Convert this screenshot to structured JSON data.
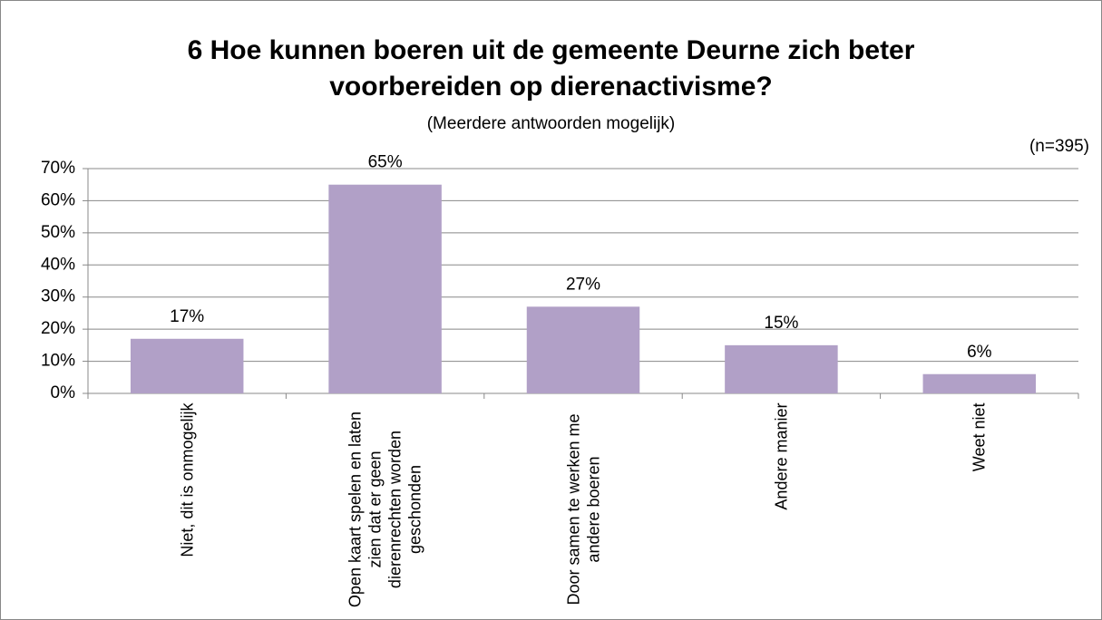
{
  "chart_data": {
    "type": "bar",
    "title": "6 Hoe kunnen boeren uit de gemeente Deurne zich beter voorbereiden op dierenactivisme?",
    "subtitle": "(Meerdere antwoorden mogelijk)",
    "annotation": "(n=395)",
    "categories": [
      "Niet, dit is onmogelijk",
      "Open kaart spelen en laten zien dat er geen dierenrechten worden geschonden",
      "Door samen te werken me andere boeren",
      "Andere manier",
      "Weet niet"
    ],
    "values": [
      17,
      65,
      27,
      15,
      6
    ],
    "value_labels": [
      "17%",
      "65%",
      "27%",
      "15%",
      "6%"
    ],
    "color": "#b1a0c7",
    "ylim": [
      0,
      70
    ],
    "yticks": [
      {
        "value": 0,
        "label": "0%"
      },
      {
        "value": 10,
        "label": "10%"
      },
      {
        "value": 20,
        "label": "20%"
      },
      {
        "value": 30,
        "label": "30%"
      },
      {
        "value": 40,
        "label": "40%"
      },
      {
        "value": 50,
        "label": "50%"
      },
      {
        "value": 60,
        "label": "60%"
      },
      {
        "value": 70,
        "label": "70%"
      }
    ],
    "grid": true
  }
}
